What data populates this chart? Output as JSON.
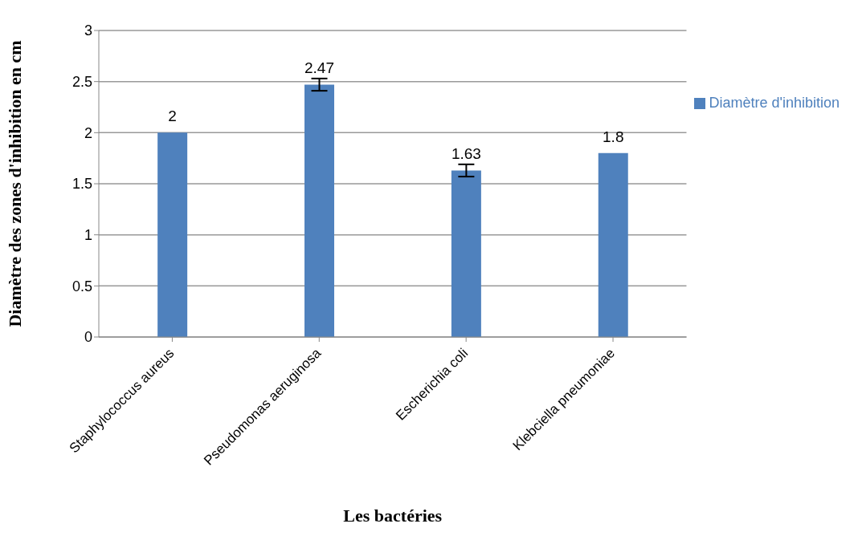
{
  "chart_data": {
    "type": "bar",
    "xlabel": "Les bactéries",
    "ylabel": "Diamètre des zones d'inhibition en cm",
    "categories": [
      "Staphylococcus aureus",
      "Pseudomonas aeruginosa",
      "Escherichia coli",
      "Klebciella pneumoniae"
    ],
    "series": [
      {
        "name": "Diamètre d'inhibition",
        "color": "#4f81bd",
        "values": [
          2,
          2.47,
          1.63,
          1.8
        ],
        "errors": [
          0,
          0.06,
          0.06,
          null
        ]
      }
    ],
    "ylim": [
      0,
      3
    ],
    "yticks": [
      0,
      0.5,
      1,
      1.5,
      2,
      2.5,
      3
    ],
    "grid": "y",
    "legend": "right",
    "data_labels": true
  }
}
